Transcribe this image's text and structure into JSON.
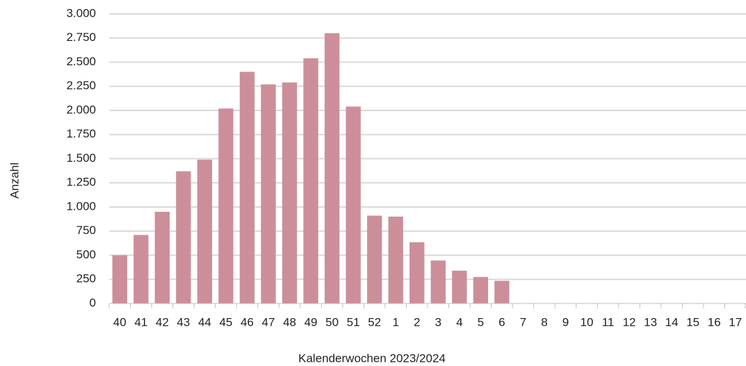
{
  "chart_data": {
    "type": "bar",
    "x_label": "Kalenderwochen 2023/2024",
    "y_label": "Anzahl",
    "categories": [
      "40",
      "41",
      "42",
      "43",
      "44",
      "45",
      "46",
      "47",
      "48",
      "49",
      "50",
      "51",
      "52",
      "1",
      "2",
      "3",
      "4",
      "5",
      "6",
      "7",
      "8",
      "9",
      "10",
      "11",
      "12",
      "13",
      "14",
      "15",
      "16",
      "17"
    ],
    "values": [
      500,
      710,
      950,
      1370,
      1490,
      2020,
      2400,
      2270,
      2290,
      2540,
      2800,
      2040,
      910,
      900,
      635,
      445,
      340,
      275,
      235,
      null,
      null,
      null,
      null,
      null,
      null,
      null,
      null,
      null,
      null,
      null
    ],
    "color": "#cc8f9a",
    "ylim": [
      0,
      3000
    ],
    "yticks": [
      0,
      250,
      500,
      750,
      {
        "value": 1000,
        "label": "1.000"
      },
      {
        "value": 1250,
        "label": "1.250"
      },
      {
        "value": 1500,
        "label": "1.500"
      },
      {
        "value": 1750,
        "label": "1.750"
      },
      {
        "value": 2000,
        "label": "2.000"
      },
      {
        "value": 2250,
        "label": "2.250"
      },
      {
        "value": 2500,
        "label": "2.500"
      },
      {
        "value": 2750,
        "label": "2.750"
      },
      {
        "value": 3000,
        "label": "3.000"
      }
    ],
    "grid": true
  }
}
